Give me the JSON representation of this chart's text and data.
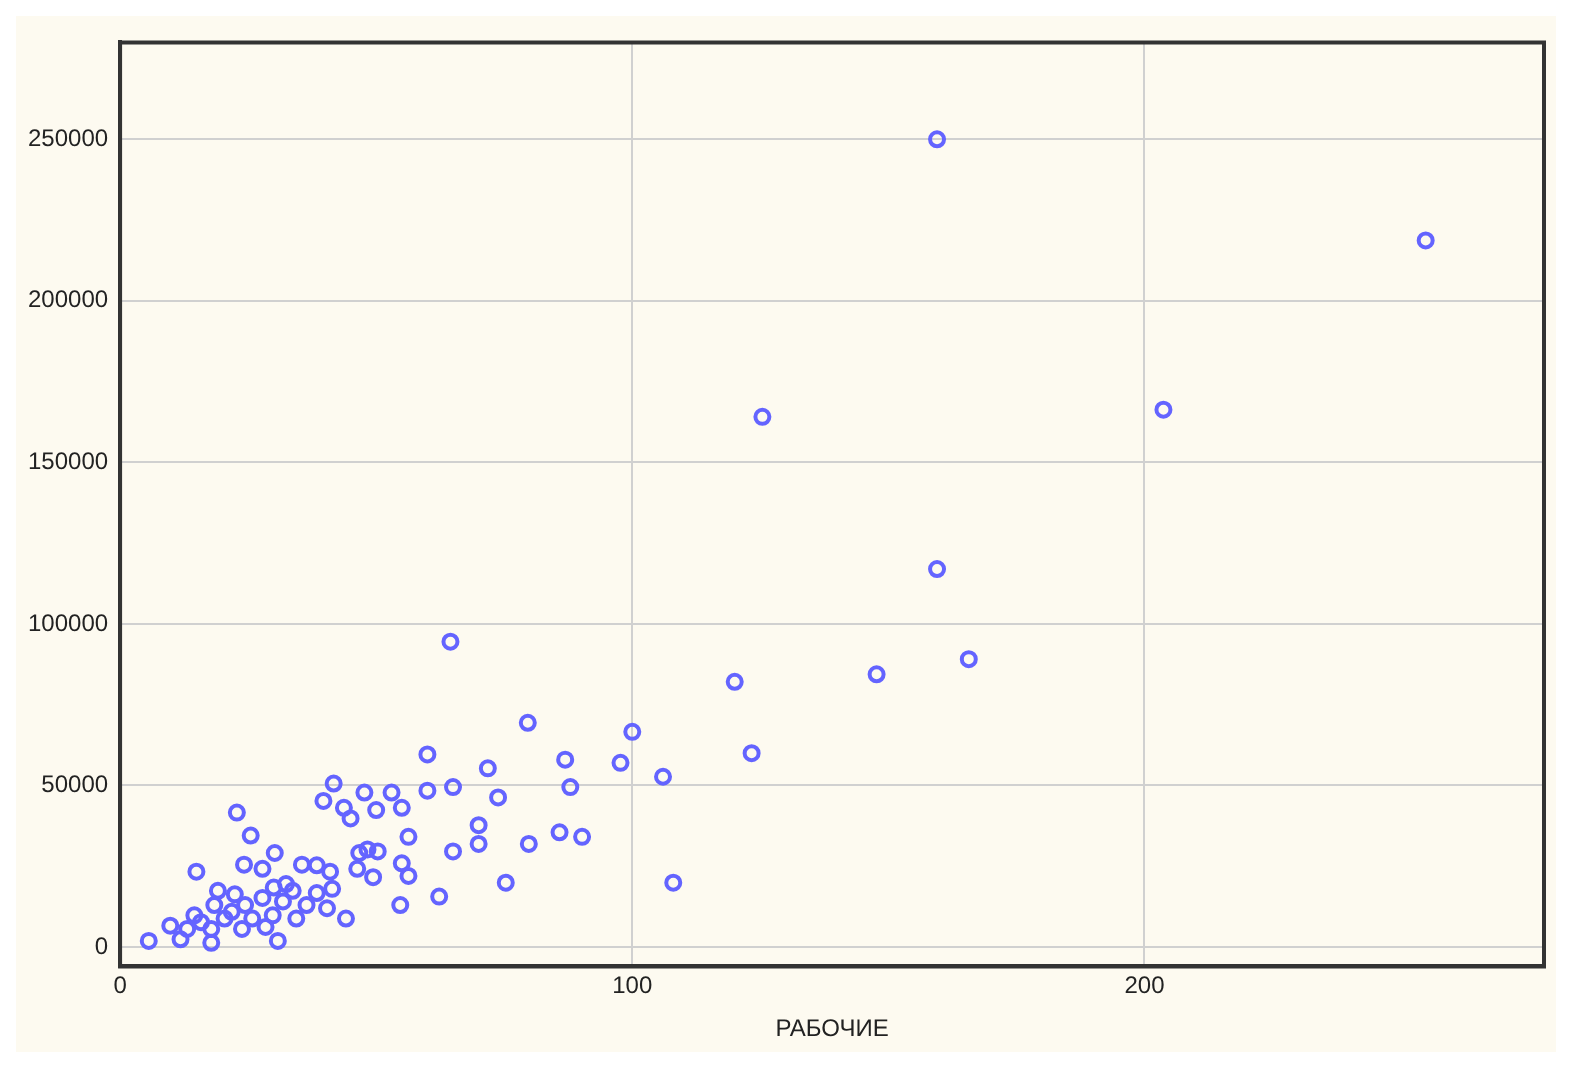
{
  "chart_data": {
    "type": "scatter",
    "xlabel": "РАБОЧИЕ",
    "xlim": [
      0,
      278
    ],
    "ylim": [
      -6000,
      280000
    ],
    "xticks": [
      0,
      100,
      200
    ],
    "yticks": [
      0,
      50000,
      100000,
      150000,
      200000,
      250000
    ],
    "grid": true,
    "legend": false,
    "marker": "circle",
    "x": [
      159.5,
      254.9,
      125.4,
      203.7,
      159.5,
      120,
      147.7,
      165.7,
      123.3,
      64.5,
      79.6,
      100,
      60,
      86.9,
      97.7,
      71.8,
      106,
      41.7,
      65,
      60,
      87.9,
      47.7,
      53,
      39.7,
      73.8,
      50,
      55,
      43.7,
      45,
      22.8,
      56.3,
      70,
      70,
      79.8,
      85.8,
      90.2,
      65,
      25.5,
      30.2,
      48.3,
      46.7,
      50.3,
      55,
      56.3,
      75.3,
      108,
      62.3,
      54.7,
      44.1,
      14.9,
      24.2,
      27.8,
      35.5,
      38.4,
      41,
      46.3,
      49.4,
      30,
      33.7,
      38.4,
      41.4,
      19.1,
      22.4,
      18.4,
      24.4,
      27.8,
      31.8,
      36.4,
      40.4,
      14.5,
      20.4,
      25.8,
      29.8,
      34.4,
      9.8,
      13.1,
      17.8,
      23.8,
      28.4,
      5.6,
      11.8,
      17.8,
      30.8,
      15.8,
      21.8,
      32.4
    ],
    "series": [
      {
        "color": "#6464ff",
        "values": [
          250000,
          218700,
          164100,
          166300,
          117000,
          82100,
          84400,
          89100,
          60000,
          94500,
          69400,
          66600,
          59600,
          58000,
          57000,
          55300,
          52700,
          50600,
          49500,
          48400,
          49500,
          47800,
          47800,
          45200,
          46300,
          42400,
          43100,
          43100,
          39800,
          41600,
          34100,
          37700,
          31900,
          31900,
          35500,
          34100,
          29600,
          34500,
          29100,
          30200,
          29100,
          29600,
          25900,
          22000,
          19900,
          19900,
          15600,
          13000,
          8800,
          23300,
          25500,
          24200,
          25500,
          25300,
          23300,
          24200,
          21600,
          18400,
          17400,
          16700,
          18000,
          17400,
          16300,
          13000,
          13000,
          15200,
          14100,
          13000,
          12000,
          9800,
          8800,
          8800,
          9800,
          8800,
          6600,
          5600,
          5600,
          5600,
          6200,
          1900,
          2400,
          1300,
          1900,
          7700,
          10900,
          19500
        ]
      }
    ]
  }
}
